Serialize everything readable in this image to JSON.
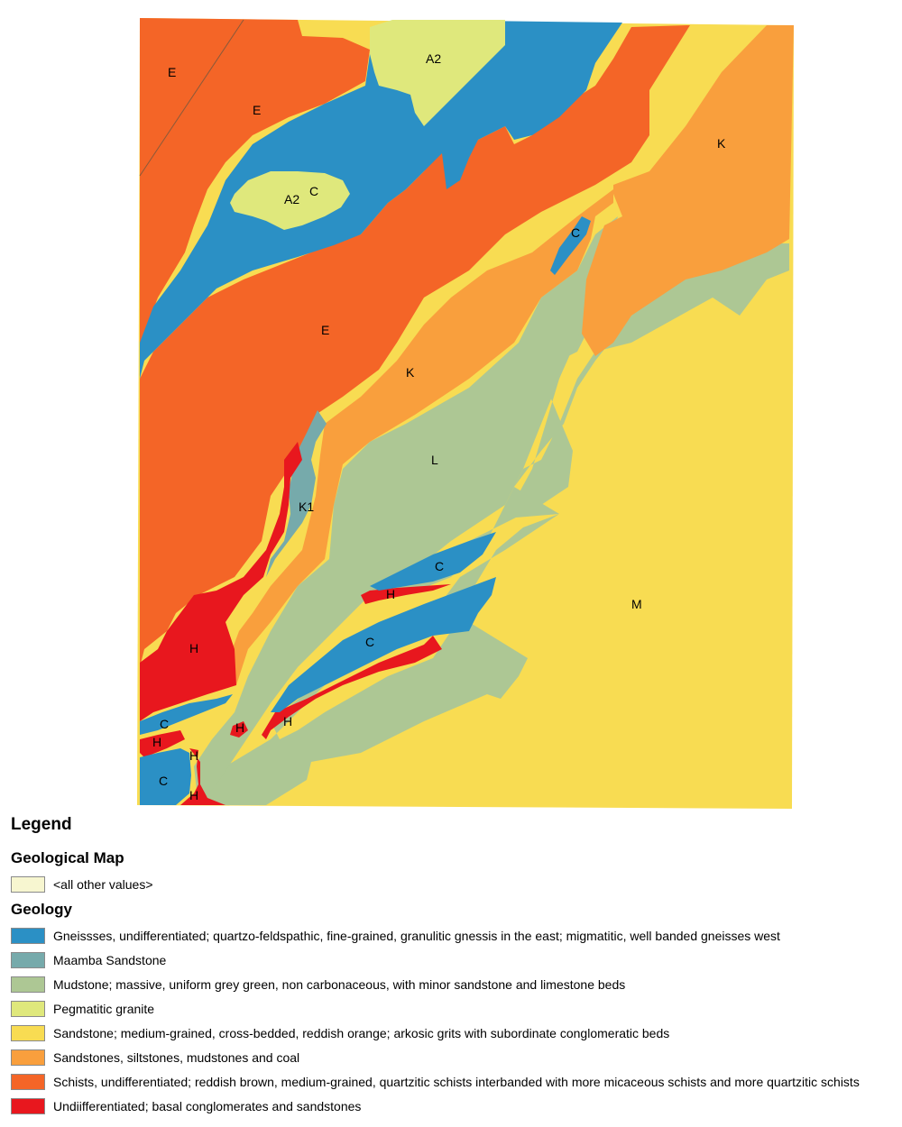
{
  "colors": {
    "gneiss": "#2b90c5",
    "maamba": "#76aaab",
    "mudstone": "#adc794",
    "pegmatite": "#dfe87c",
    "sandstone_m": "#f8dc52",
    "sandstone_k": "#f99f3d",
    "schist": "#f46527",
    "conglomerate": "#e8171e",
    "other": "#f7f6d0"
  },
  "map_labels": {
    "e1": "E",
    "e2": "E",
    "e3": "E",
    "a2a": "A2",
    "a2b": "A2",
    "c_island": "C",
    "k1": "K",
    "k2": "K",
    "l": "L",
    "k1unit": "K1",
    "m": "M",
    "c1": "C",
    "c2": "C",
    "c3": "C",
    "c4": "C",
    "c5": "C",
    "h1": "H",
    "h2": "H",
    "h3": "H",
    "h4": "H",
    "h5": "H",
    "h6": "H",
    "h7": "H"
  },
  "legend": {
    "title": "Legend",
    "map_title": "Geological Map",
    "other_label": "<all other values>",
    "geology_title": "Geology",
    "items": [
      {
        "label": "Gneissses, undifferentiated; quartzo-feldspathic, fine-grained, granulitic gnessis in the east; migmatitic, well banded gneisses west",
        "color": "#2b90c5"
      },
      {
        "label": "Maamba Sandstone",
        "color": "#76aaab"
      },
      {
        "label": "Mudstone; massive, uniform grey green, non carbonaceous, with minor sandstone and limestone beds",
        "color": "#adc794"
      },
      {
        "label": "Pegmatitic granite",
        "color": "#dfe87c"
      },
      {
        "label": "Sandstone; medium-grained, cross-bedded, reddish orange; arkosic grits with subordinate conglomeratic beds",
        "color": "#f8dc52"
      },
      {
        "label": "Sandstones, siltstones, mudstones and coal",
        "color": "#f99f3d"
      },
      {
        "label": "Schists, undifferentiated; reddish brown, medium-grained, quartzitic schists interbanded with more micaceous schists and more quartzitic schists",
        "color": "#f46527"
      },
      {
        "label": "Undiifferentiated; basal conglomerates and sandstones",
        "color": "#e8171e"
      }
    ]
  }
}
